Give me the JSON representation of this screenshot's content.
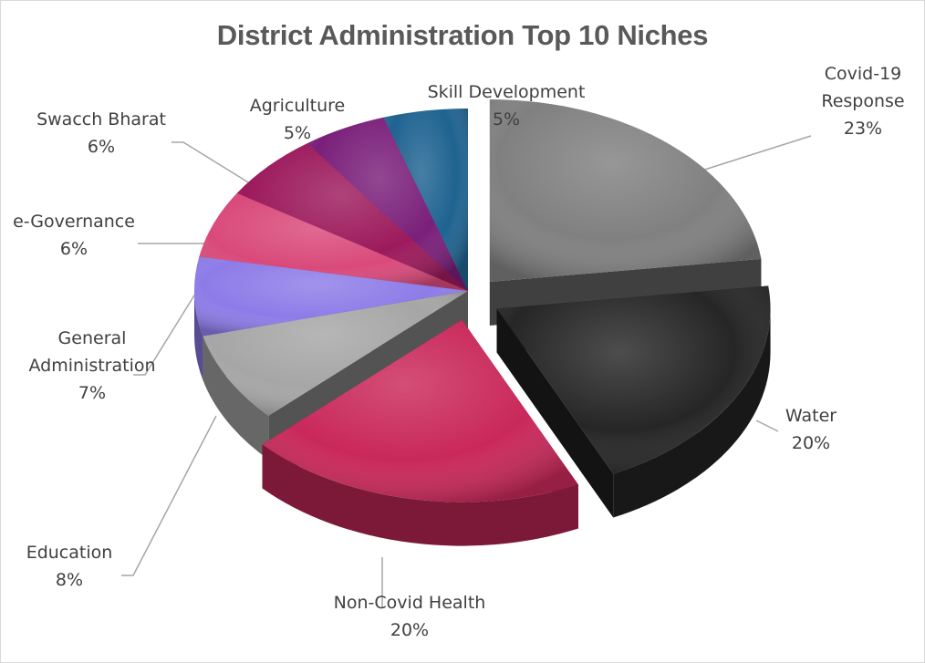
{
  "chart_data": {
    "type": "pie",
    "title": "District Administration Top 10 Niches",
    "slices": [
      {
        "name": "Covid-19 Response",
        "name_lines": [
          "Covid-19",
          "Response"
        ],
        "value": 23,
        "label": "23%",
        "color": "#808080",
        "exploded": true
      },
      {
        "name": "Water",
        "name_lines": [
          "Water"
        ],
        "value": 20,
        "label": "20%",
        "color": "#262626",
        "exploded": true
      },
      {
        "name": "Non-Covid Health",
        "name_lines": [
          "Non-Covid Health"
        ],
        "value": 20,
        "label": "20%",
        "color": "#c9285a",
        "exploded": true
      },
      {
        "name": "Education",
        "name_lines": [
          "Education"
        ],
        "value": 8,
        "label": "8%",
        "color": "#a6a6a6",
        "exploded": false
      },
      {
        "name": "General Administration",
        "name_lines": [
          "General",
          "Administration"
        ],
        "value": 7,
        "label": "7%",
        "color": "#8d7ce8",
        "exploded": false
      },
      {
        "name": "e-Governance",
        "name_lines": [
          "e-Governance"
        ],
        "value": 6,
        "label": "6%",
        "color": "#d94a7a",
        "exploded": false
      },
      {
        "name": "Swacch Bharat",
        "name_lines": [
          "Swacch Bharat"
        ],
        "value": 6,
        "label": "6%",
        "color": "#9c1a5c",
        "exploded": false
      },
      {
        "name": "Agriculture",
        "name_lines": [
          "Agriculture"
        ],
        "value": 5,
        "label": "5%",
        "color": "#7a1f7a",
        "exploded": false
      },
      {
        "name": "Skill Development",
        "name_lines": [
          "Skill Development"
        ],
        "value": 5,
        "label": "5%",
        "color": "#1f6391",
        "exploded": false
      }
    ],
    "start_direction": "12 o'clock, clockwise",
    "legend": "none",
    "data_labels": "category name and percentage"
  }
}
